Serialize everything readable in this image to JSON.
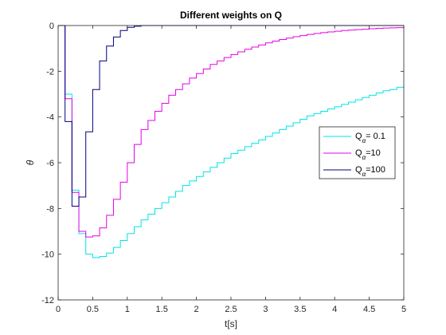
{
  "chart_data": {
    "type": "line",
    "step": true,
    "title": "Different weights on Q",
    "xlabel": "t[s]",
    "ylabel": "θ",
    "xlim": [
      0,
      5
    ],
    "ylim": [
      -12,
      0
    ],
    "xticks": [
      0,
      0.5,
      1,
      1.5,
      2,
      2.5,
      3,
      3.5,
      4,
      4.5,
      5
    ],
    "xtick_labels": [
      "0",
      "0.5",
      "1",
      "1.5",
      "2",
      "2.5",
      "3",
      "3.5",
      "4",
      "4.5",
      "5"
    ],
    "yticks": [
      -12,
      -10,
      -8,
      -6,
      -4,
      -2,
      0
    ],
    "ytick_labels": [
      "-12",
      "-10",
      "-8",
      "-6",
      "-4",
      "-2",
      "0"
    ],
    "grid": false,
    "legend_position": "right",
    "series": [
      {
        "name": "Q_α= 0.1",
        "label_main": "Q",
        "label_sub": "α",
        "label_suffix": "= 0.1",
        "color": "#00e5e5",
        "x": [
          0,
          0.1,
          0.2,
          0.3,
          0.4,
          0.5,
          0.6,
          0.7,
          0.8,
          0.9,
          1.0,
          1.1,
          1.2,
          1.3,
          1.4,
          1.5,
          1.6,
          1.7,
          1.8,
          1.9,
          2.0,
          2.1,
          2.2,
          2.3,
          2.4,
          2.5,
          2.6,
          2.7,
          2.8,
          2.9,
          3.0,
          3.1,
          3.2,
          3.3,
          3.4,
          3.5,
          3.6,
          3.7,
          3.8,
          3.9,
          4.0,
          4.1,
          4.2,
          4.3,
          4.4,
          4.5,
          4.6,
          4.7,
          4.8,
          4.9,
          5.0
        ],
        "y": [
          0,
          -3.0,
          -7.2,
          -9.1,
          -10.0,
          -10.15,
          -10.1,
          -9.95,
          -9.7,
          -9.4,
          -9.1,
          -8.8,
          -8.5,
          -8.25,
          -8.0,
          -7.75,
          -7.5,
          -7.25,
          -7.0,
          -6.8,
          -6.6,
          -6.4,
          -6.2,
          -6.0,
          -5.8,
          -5.6,
          -5.45,
          -5.3,
          -5.15,
          -5.0,
          -4.85,
          -4.7,
          -4.55,
          -4.4,
          -4.25,
          -4.1,
          -3.95,
          -3.85,
          -3.75,
          -3.65,
          -3.55,
          -3.45,
          -3.35,
          -3.25,
          -3.15,
          -3.05,
          -2.95,
          -2.85,
          -2.8,
          -2.7,
          -2.6
        ]
      },
      {
        "name": "Q_α=10",
        "label_main": "Q",
        "label_sub": "α",
        "label_suffix": "=10",
        "color": "#e500e5",
        "x": [
          0,
          0.1,
          0.2,
          0.3,
          0.4,
          0.5,
          0.6,
          0.7,
          0.8,
          0.9,
          1.0,
          1.1,
          1.2,
          1.3,
          1.4,
          1.5,
          1.6,
          1.7,
          1.8,
          1.9,
          2.0,
          2.1,
          2.2,
          2.3,
          2.4,
          2.5,
          2.6,
          2.7,
          2.8,
          2.9,
          3.0,
          3.1,
          3.2,
          3.3,
          3.4,
          3.5,
          3.6,
          3.7,
          3.8,
          3.9,
          4.0,
          4.1,
          4.2,
          4.3,
          4.4,
          4.5,
          4.6,
          4.7,
          4.8,
          4.9,
          5.0
        ],
        "y": [
          0,
          -3.2,
          -7.3,
          -9.0,
          -9.25,
          -9.2,
          -8.85,
          -8.3,
          -7.6,
          -6.85,
          -6.0,
          -5.2,
          -4.55,
          -4.15,
          -3.75,
          -3.4,
          -3.05,
          -2.8,
          -2.55,
          -2.3,
          -2.1,
          -1.9,
          -1.7,
          -1.55,
          -1.4,
          -1.27,
          -1.15,
          -1.04,
          -0.94,
          -0.85,
          -0.76,
          -0.68,
          -0.61,
          -0.55,
          -0.49,
          -0.44,
          -0.39,
          -0.35,
          -0.31,
          -0.28,
          -0.25,
          -0.22,
          -0.2,
          -0.18,
          -0.16,
          -0.14,
          -0.12,
          -0.11,
          -0.1,
          -0.09,
          -0.08
        ]
      },
      {
        "name": "Q_α=100",
        "label_main": "Q",
        "label_sub": "α",
        "label_suffix": "=100",
        "color": "#00007f",
        "x": [
          0,
          0.1,
          0.2,
          0.3,
          0.4,
          0.5,
          0.6,
          0.7,
          0.8,
          0.9,
          1.0,
          1.1,
          1.2,
          1.3,
          1.5,
          2.0,
          2.5,
          3.0,
          3.5,
          4.0,
          4.5,
          5.0
        ],
        "y": [
          0,
          -4.2,
          -7.9,
          -7.5,
          -4.65,
          -2.8,
          -1.55,
          -0.9,
          -0.5,
          -0.22,
          -0.08,
          -0.03,
          0,
          0,
          0,
          0,
          0,
          0,
          0,
          0,
          0,
          0
        ]
      }
    ]
  }
}
